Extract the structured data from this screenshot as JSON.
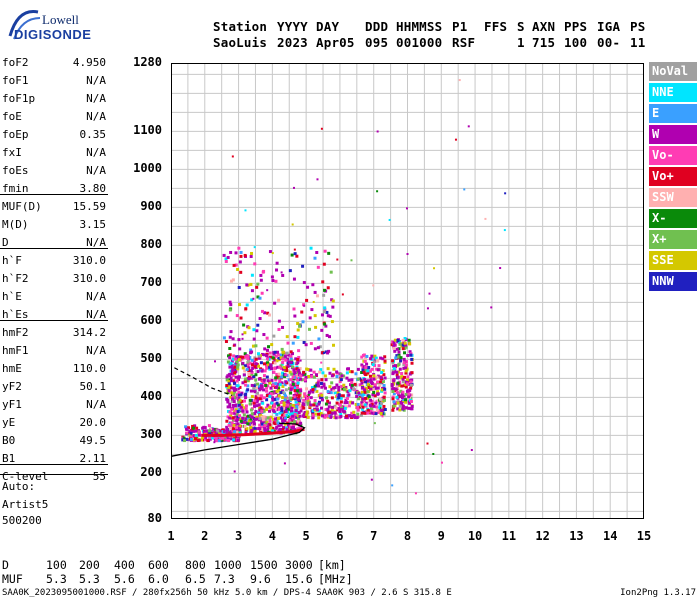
{
  "logo": {
    "line1": "Lowell",
    "line2": "DIGISONDE"
  },
  "header": {
    "labels": [
      "Station",
      "YYYY",
      "DAY",
      "DDD",
      "HHMMSS",
      "P1",
      "FFS",
      "S",
      "AXN",
      "PPS",
      "IGA",
      "PS"
    ],
    "values": [
      "SaoLuis",
      "2023",
      "Apr05",
      "095",
      "001000",
      "RSF",
      "",
      "1",
      "715",
      "100",
      "00-",
      "11"
    ]
  },
  "params": [
    {
      "label": "foF2",
      "value": "4.950"
    },
    {
      "label": "foF1",
      "value": "N/A"
    },
    {
      "label": "foF1p",
      "value": "N/A"
    },
    {
      "label": "foE",
      "value": "N/A"
    },
    {
      "label": "foEp",
      "value": "0.35"
    },
    {
      "label": "fxI",
      "value": "N/A"
    },
    {
      "label": "foEs",
      "value": "N/A"
    },
    {
      "label": "fmin",
      "value": "3.80"
    },
    {
      "label": "MUF(D)",
      "value": "15.59"
    },
    {
      "label": "M(D)",
      "value": "3.15"
    },
    {
      "label": "D",
      "value": "N/A"
    },
    {
      "label": "h`F",
      "value": "310.0"
    },
    {
      "label": "h`F2",
      "value": "310.0"
    },
    {
      "label": "h`E",
      "value": "N/A"
    },
    {
      "label": "h`Es",
      "value": "N/A"
    },
    {
      "label": "hmF2",
      "value": "314.2"
    },
    {
      "label": "hmF1",
      "value": "N/A"
    },
    {
      "label": "hmE",
      "value": "110.0"
    },
    {
      "label": "yF2",
      "value": "50.1"
    },
    {
      "label": "yF1",
      "value": "N/A"
    },
    {
      "label": "yE",
      "value": "20.0"
    },
    {
      "label": "B0",
      "value": "49.5"
    },
    {
      "label": "B1",
      "value": "2.11"
    },
    {
      "label": "C-level",
      "value": "55"
    }
  ],
  "auto": {
    "line1": "Auto:",
    "line2": "Artist5",
    "line3": "500200"
  },
  "legend": [
    {
      "label": "NoVal",
      "color": "#a0a0a0"
    },
    {
      "label": "NNE",
      "color": "#00e5ff"
    },
    {
      "label": "E",
      "color": "#3aa0ff"
    },
    {
      "label": "W",
      "color": "#b000b0"
    },
    {
      "label": "Vo-",
      "color": "#ff3cb4"
    },
    {
      "label": "Vo+",
      "color": "#e00020"
    },
    {
      "label": "SSW",
      "color": "#ffb0b0"
    },
    {
      "label": "X-",
      "color": "#0a8a0a"
    },
    {
      "label": "X+",
      "color": "#70c050"
    },
    {
      "label": "SSE",
      "color": "#d4c800"
    },
    {
      "label": "NNW",
      "color": "#2020c0"
    }
  ],
  "chart_data": {
    "type": "scatter",
    "title": "",
    "xlabel": "",
    "ylabel": "",
    "xlim": [
      1,
      15
    ],
    "ylim": [
      80,
      1280
    ],
    "x_ticks": [
      "1",
      "2",
      "3",
      "4",
      "5",
      "6",
      "7",
      "8",
      "9",
      "10",
      "11",
      "12",
      "13",
      "14",
      "15"
    ],
    "y_ticks": [
      "80",
      "200",
      "300",
      "400",
      "500",
      "600",
      "700",
      "800",
      "900",
      "1000",
      "1100",
      "1280"
    ],
    "grid": true,
    "clusters": [
      {
        "x_range": [
          1.3,
          2.3
        ],
        "h_range": [
          290,
          330
        ],
        "density": 120
      },
      {
        "x_range": [
          2.3,
          3.0
        ],
        "h_range": [
          290,
          320
        ],
        "density": 140
      },
      {
        "x_range": [
          2.6,
          4.8
        ],
        "h_range": [
          310,
          520
        ],
        "density": 900
      },
      {
        "x_range": [
          4.5,
          6.6
        ],
        "h_range": [
          350,
          480
        ],
        "density": 350
      },
      {
        "x_range": [
          6.6,
          7.3
        ],
        "h_range": [
          360,
          520
        ],
        "density": 220
      },
      {
        "x_range": [
          7.5,
          8.1
        ],
        "h_range": [
          370,
          560
        ],
        "density": 220
      },
      {
        "x_range": [
          2.5,
          5.8
        ],
        "h_range": [
          520,
          800
        ],
        "density": 180
      }
    ],
    "o_trace": [
      [
        1.9,
        300
      ],
      [
        2.5,
        300
      ],
      [
        3.2,
        302
      ],
      [
        4.0,
        306
      ],
      [
        4.6,
        310
      ],
      [
        4.95,
        316
      ]
    ],
    "model_curve": [
      [
        1.0,
        245
      ],
      [
        2.0,
        262
      ],
      [
        3.0,
        276
      ],
      [
        4.0,
        290
      ],
      [
        4.8,
        308
      ],
      [
        4.95,
        320
      ],
      [
        4.7,
        330
      ],
      [
        4.2,
        332
      ]
    ],
    "dashed_curve": [
      [
        1.1,
        478
      ],
      [
        1.6,
        455
      ],
      [
        2.2,
        425
      ],
      [
        2.8,
        405
      ]
    ]
  },
  "bottom": {
    "d_label": "D",
    "d_values": [
      "100",
      "200",
      "400",
      "600",
      "800",
      "1000",
      "1500",
      "3000"
    ],
    "d_unit": "[km]",
    "muf_label": "MUF",
    "muf_values": [
      "5.3",
      "5.3",
      "5.6",
      "6.0",
      "6.5",
      "7.3",
      "9.6",
      "15.6"
    ],
    "muf_unit": "[MHz]",
    "footer_left": "SAA0K_2023095001000.RSF / 280fx256h 50 kHz 5.0 km / DPS-4 SAA0K 903 / 2.6 S 315.8 E",
    "footer_right": "Ion2Png 1.3.17"
  }
}
